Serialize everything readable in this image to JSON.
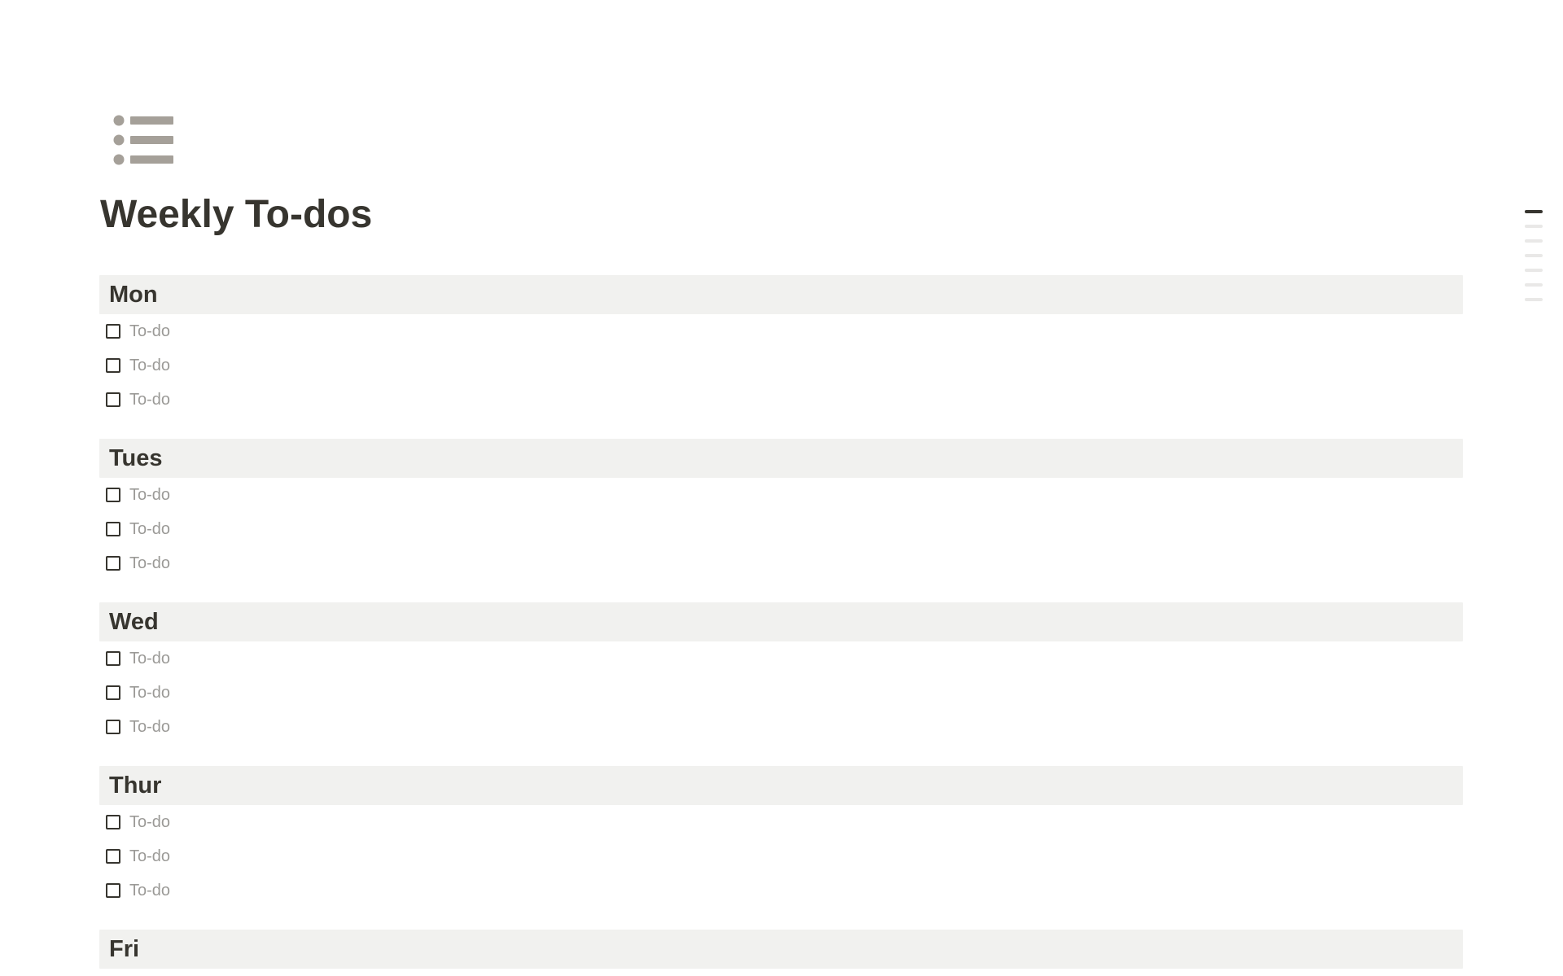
{
  "page": {
    "icon": "bulleted-list-icon",
    "title": "Weekly To-dos"
  },
  "sections": [
    {
      "label": "Mon",
      "items": [
        {
          "label": "To-do",
          "checked": false
        },
        {
          "label": "To-do",
          "checked": false
        },
        {
          "label": "To-do",
          "checked": false
        }
      ]
    },
    {
      "label": "Tues",
      "items": [
        {
          "label": "To-do",
          "checked": false
        },
        {
          "label": "To-do",
          "checked": false
        },
        {
          "label": "To-do",
          "checked": false
        }
      ]
    },
    {
      "label": "Wed",
      "items": [
        {
          "label": "To-do",
          "checked": false
        },
        {
          "label": "To-do",
          "checked": false
        },
        {
          "label": "To-do",
          "checked": false
        }
      ]
    },
    {
      "label": "Thur",
      "items": [
        {
          "label": "To-do",
          "checked": false
        },
        {
          "label": "To-do",
          "checked": false
        },
        {
          "label": "To-do",
          "checked": false
        }
      ]
    },
    {
      "label": "Fri",
      "items": []
    }
  ],
  "toc": {
    "bar_count": 7,
    "active_index": 0
  },
  "colors": {
    "header_bg": "#F1F1EF",
    "text_dark": "#37352F",
    "todo_text": "#9B9A97",
    "checkbox_border": "#37352F",
    "icon": "#A5A099",
    "toc_active": "#37352F",
    "toc_inactive": "#E9E8E7"
  }
}
